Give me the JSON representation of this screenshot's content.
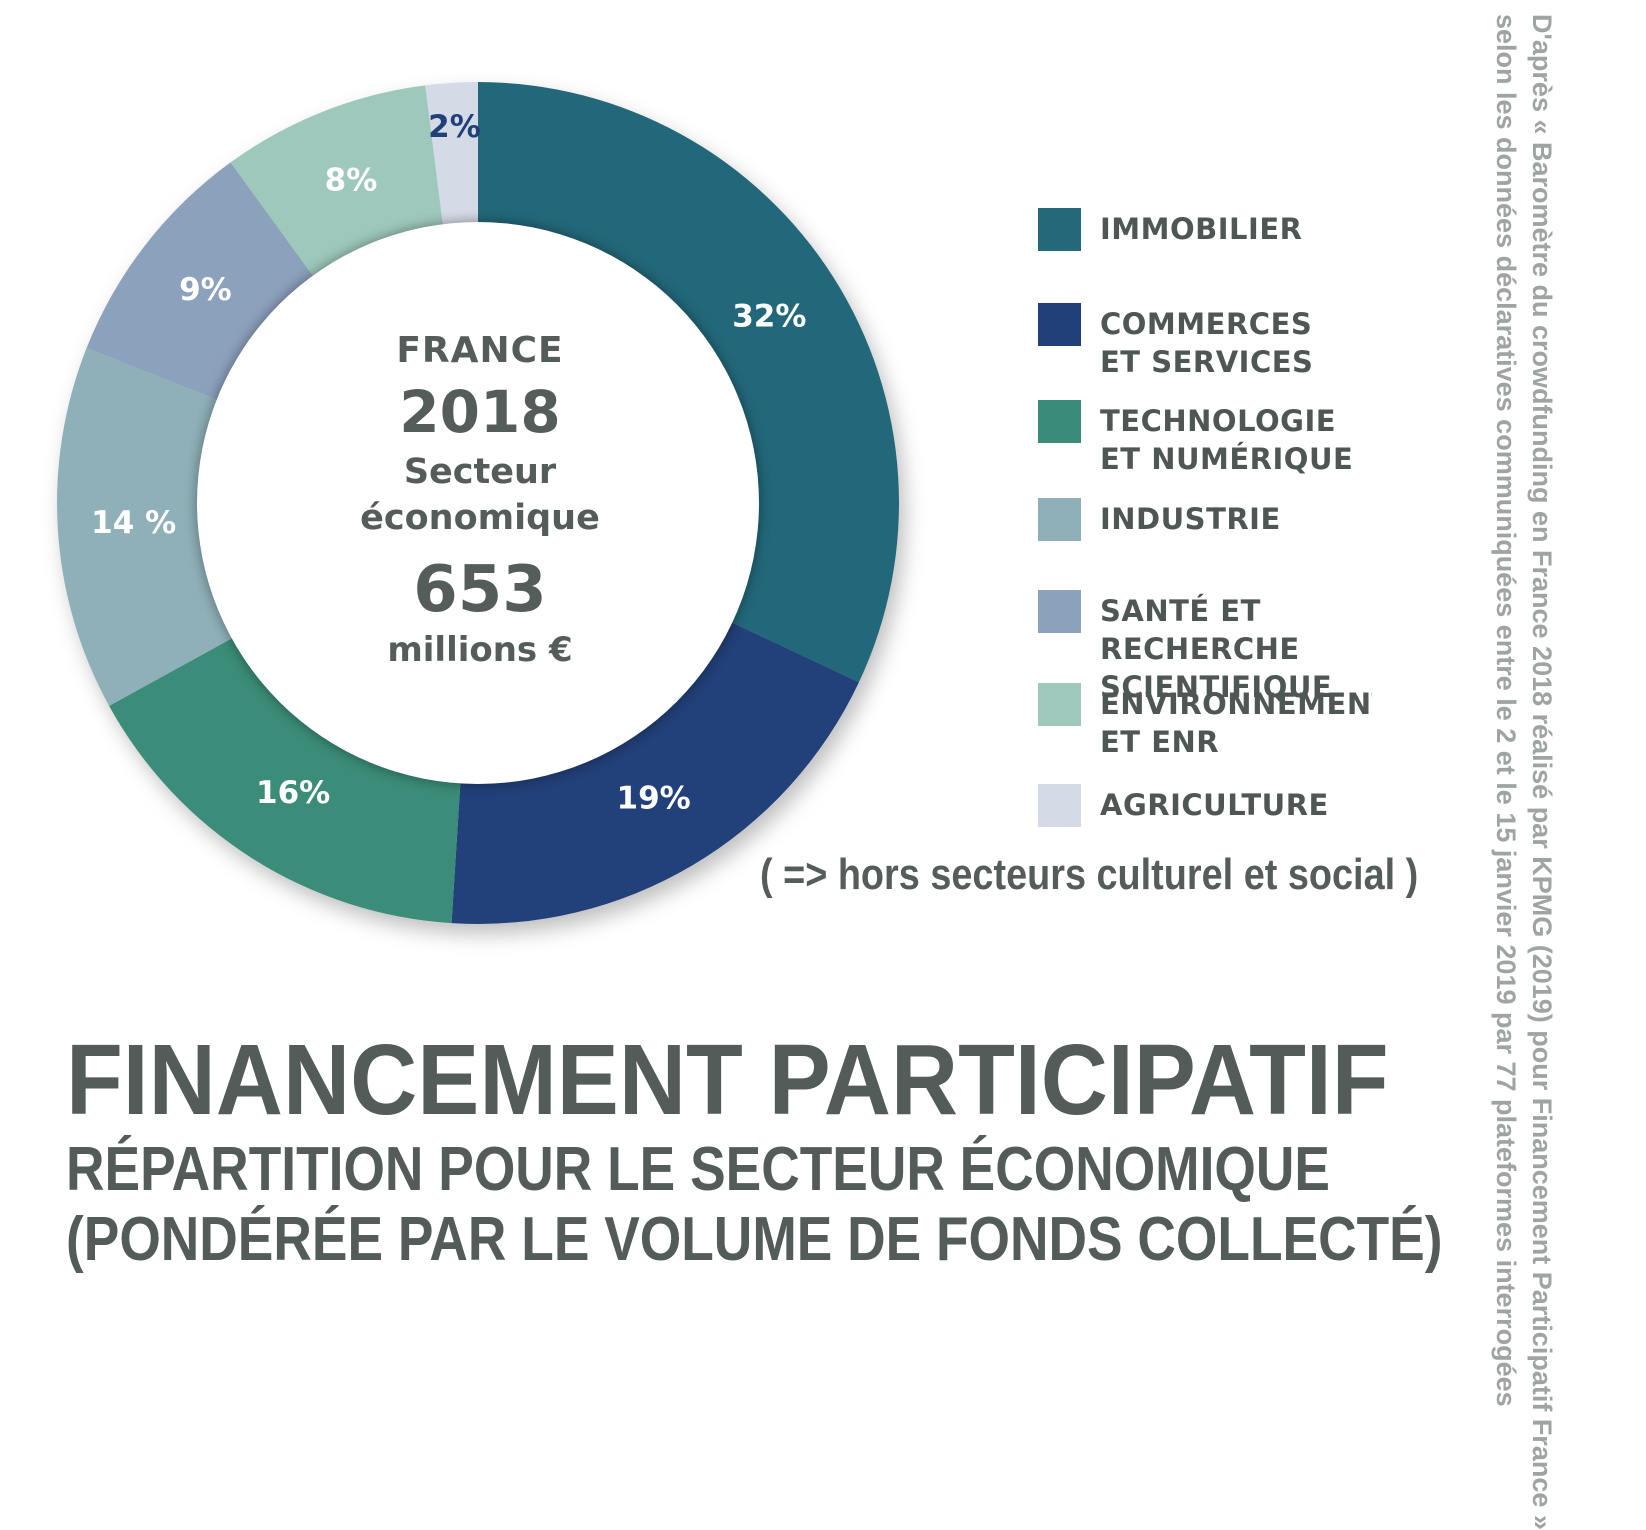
{
  "chart_data": {
    "type": "pie",
    "categories": [
      "IMMOBILIER",
      "COMMERCES ET SERVICES",
      "TECHNOLOGIE ET NUMÉRIQUE",
      "INDUSTRIE",
      "SANTÉ ET RECHERCHE SCIENTIFIQUE",
      "ENVIRONNEMENT ET ENR",
      "AGRICULTURE"
    ],
    "values": [
      32,
      19,
      16,
      14,
      9,
      8,
      2
    ],
    "value_labels": [
      "32%",
      "19%",
      "16%",
      "14 %",
      "9%",
      "8%",
      "2%"
    ],
    "colors": [
      "#24687a",
      "#213f79",
      "#3a8c78",
      "#8fb0b9",
      "#8ca1bc",
      "#9ec8bc",
      "#d4dae6"
    ],
    "label_colors": [
      "#ffffff",
      "#ffffff",
      "#ffffff",
      "#ffffff",
      "#ffffff",
      "#ffffff",
      "#213f79"
    ],
    "center": {
      "line1": "FRANCE",
      "line2": "2018",
      "line3": "Secteur",
      "line4": "économique",
      "line5": "653",
      "line6": "millions €"
    },
    "legend": [
      {
        "label": "IMMOBILIER",
        "color": "#24687a"
      },
      {
        "label": "COMMERCES\nET SERVICES",
        "color": "#213f79"
      },
      {
        "label": "TECHNOLOGIE\nET NUMÉRIQUE",
        "color": "#3a8c78"
      },
      {
        "label": "INDUSTRIE",
        "color": "#8fb0b9"
      },
      {
        "label": "SANTÉ ET RECHERCHE\nSCIENTIFIQUE",
        "color": "#8ca1bc"
      },
      {
        "label": "ENVIRONNEMENT\nET ENR",
        "color": "#9ec8bc"
      },
      {
        "label": "AGRICULTURE",
        "color": "#d4dae6"
      }
    ],
    "note": "( =>  hors secteurs culturel et social )",
    "title": "FINANCEMENT PARTICIPATIF",
    "subtitle_line1": "RÉPARTITION POUR LE SECTEUR ÉCONOMIQUE",
    "subtitle_line2": "(PONDÉRÉE PAR LE VOLUME DE FONDS COLLECTÉ)",
    "source_line1": "D'après « Baromètre du crowdfunding en France 2018 réalisé par KPMG (2019) pour Financement Participatif France »",
    "source_line2": "selon les données déclaratives communiquées entre le 2 et le 15 janvier 2019  par 77 plateformes interrogées"
  }
}
